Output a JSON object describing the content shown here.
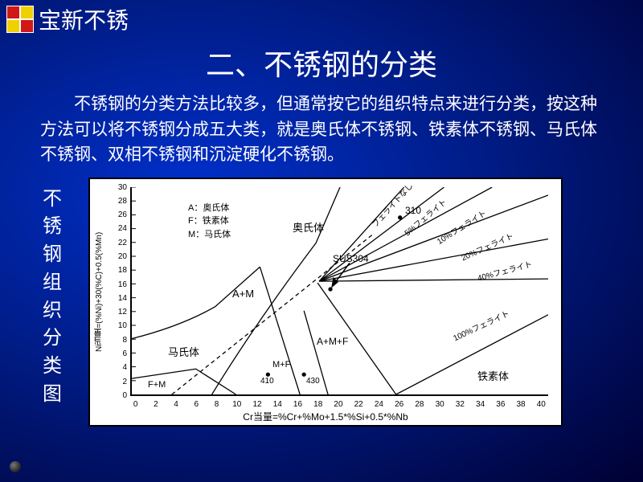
{
  "header": {
    "brand": "宝新不锈"
  },
  "title": "二、不锈钢的分类",
  "paragraph": "不锈钢的分类方法比较多，但通常按它的组织特点来进行分类，按这种方法可以将不锈钢分成五大类，就是奥氏体不锈钢、铁素体不锈钢、马氏体不锈钢、双相不锈钢和沉淀硬化不锈钢。",
  "vertical_label": [
    "不",
    "锈",
    "钢",
    "组",
    "织",
    "分",
    "类",
    "图"
  ],
  "chart": {
    "type": "phase-diagram",
    "background_color": "#ffffff",
    "border_color": "#000000",
    "x_label": "Cr当量=%Cr+%Mo+1.5*%Si+0.5*%Nb",
    "y_label": "Ni当量=(%Ni)+30(%C)+0.5(%Mn)",
    "xlim": [
      0,
      40
    ],
    "ylim": [
      0,
      30
    ],
    "x_ticks": [
      0,
      2,
      4,
      6,
      8,
      10,
      12,
      14,
      16,
      18,
      20,
      22,
      24,
      26,
      28,
      30,
      32,
      34,
      36,
      38,
      40
    ],
    "y_ticks": [
      30,
      28,
      26,
      24,
      22,
      20,
      18,
      16,
      14,
      12,
      10,
      8,
      6,
      4,
      2,
      0
    ],
    "legend": [
      "A：奥氏体",
      "F：铁素体",
      "M：马氏体"
    ],
    "regions": {
      "austenite": "奥氏体",
      "am": "A+M",
      "martensite": "马氏体",
      "fm": "F+M",
      "amf": "A+M+F",
      "mf": "M+F",
      "ferrite": "铁素体"
    },
    "points": {
      "sus304": "SUS304",
      "310": "310",
      "410": "410",
      "430": "430"
    },
    "diagonal_labels": [
      "フェライトなし",
      "5%フェライト",
      "10%フェライト",
      "20%フェライト",
      "40%フェライト",
      "100%フェライト"
    ],
    "line_color": "#000000",
    "line_width": 1.2,
    "font_size_labels": 11
  },
  "colors": {
    "bg_center": "#0030cc",
    "bg_edge": "#000033",
    "text": "#ffffff",
    "logo_red": "#d01818",
    "logo_yellow": "#f0d000"
  }
}
